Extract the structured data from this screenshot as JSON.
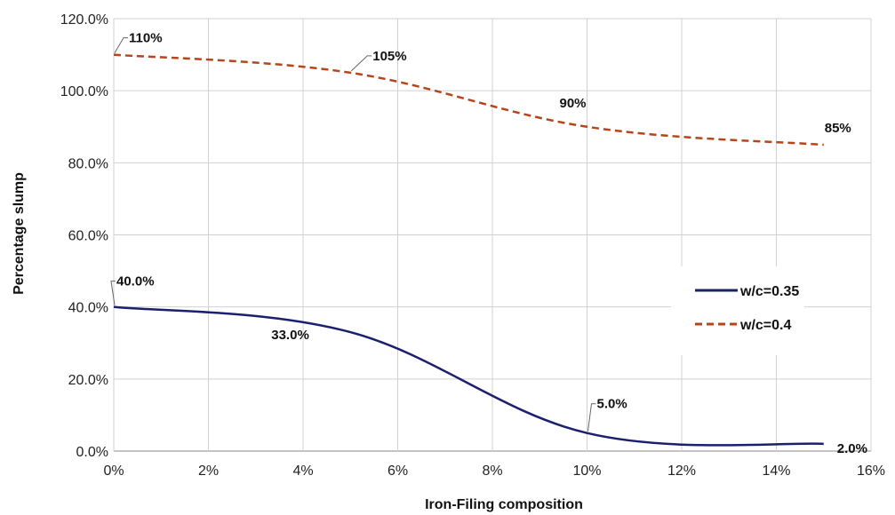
{
  "chart_data": {
    "type": "line",
    "title": "",
    "xlabel": "Iron-Filing composition",
    "ylabel": "Percentage slump",
    "x_ticks": [
      "0%",
      "2%",
      "4%",
      "6%",
      "8%",
      "10%",
      "12%",
      "14%",
      "16%"
    ],
    "y_ticks": [
      "0.0%",
      "20.0%",
      "40.0%",
      "60.0%",
      "80.0%",
      "100.0%",
      "120.0%"
    ],
    "xlim": [
      0,
      16
    ],
    "ylim": [
      0,
      120
    ],
    "grid": true,
    "legend_position": "right",
    "series": [
      {
        "name": "w/c=0.35",
        "color": "#1a1f6e",
        "dash": "solid",
        "x": [
          0,
          5,
          10,
          15
        ],
        "y": [
          40,
          33,
          5,
          2
        ],
        "labels": [
          "40.0%",
          "33.0%",
          "5.0%",
          "2.0%"
        ]
      },
      {
        "name": "w/c=0.4",
        "color": "#b5451b",
        "dash": "dashed",
        "x": [
          0,
          5,
          10,
          15
        ],
        "y": [
          110,
          105,
          90,
          85
        ],
        "labels": [
          "110%",
          "105%",
          "90%",
          "85%"
        ]
      }
    ]
  }
}
